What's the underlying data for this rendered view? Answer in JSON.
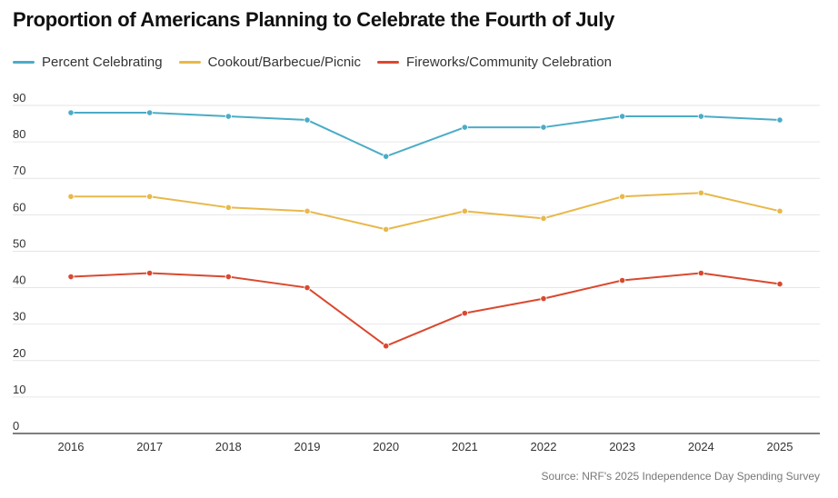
{
  "chart_data": {
    "type": "line",
    "title": "Proportion of Americans Planning to Celebrate the Fourth of July",
    "xlabel": "",
    "ylabel": "",
    "categories": [
      "2016",
      "2017",
      "2018",
      "2019",
      "2020",
      "2021",
      "2022",
      "2023",
      "2024",
      "2025"
    ],
    "ylim": [
      0,
      90
    ],
    "yticks": [
      0,
      10,
      20,
      30,
      40,
      50,
      60,
      70,
      80,
      90
    ],
    "grid": true,
    "legend": "top-left",
    "series": [
      {
        "name": "Percent Celebrating",
        "color": "#4bacc6",
        "values": [
          88,
          88,
          87,
          86,
          76,
          84,
          84,
          87,
          87,
          86
        ]
      },
      {
        "name": "Cookout/Barbecue/Picnic",
        "color": "#e8b84a",
        "values": [
          65,
          65,
          62,
          61,
          56,
          61,
          59,
          65,
          66,
          61
        ]
      },
      {
        "name": "Fireworks/Community Celebration",
        "color": "#d9492f",
        "values": [
          43,
          44,
          43,
          40,
          24,
          33,
          37,
          42,
          44,
          41
        ]
      }
    ],
    "source": "Source: NRF's 2025 Independence Day Spending Survey"
  }
}
